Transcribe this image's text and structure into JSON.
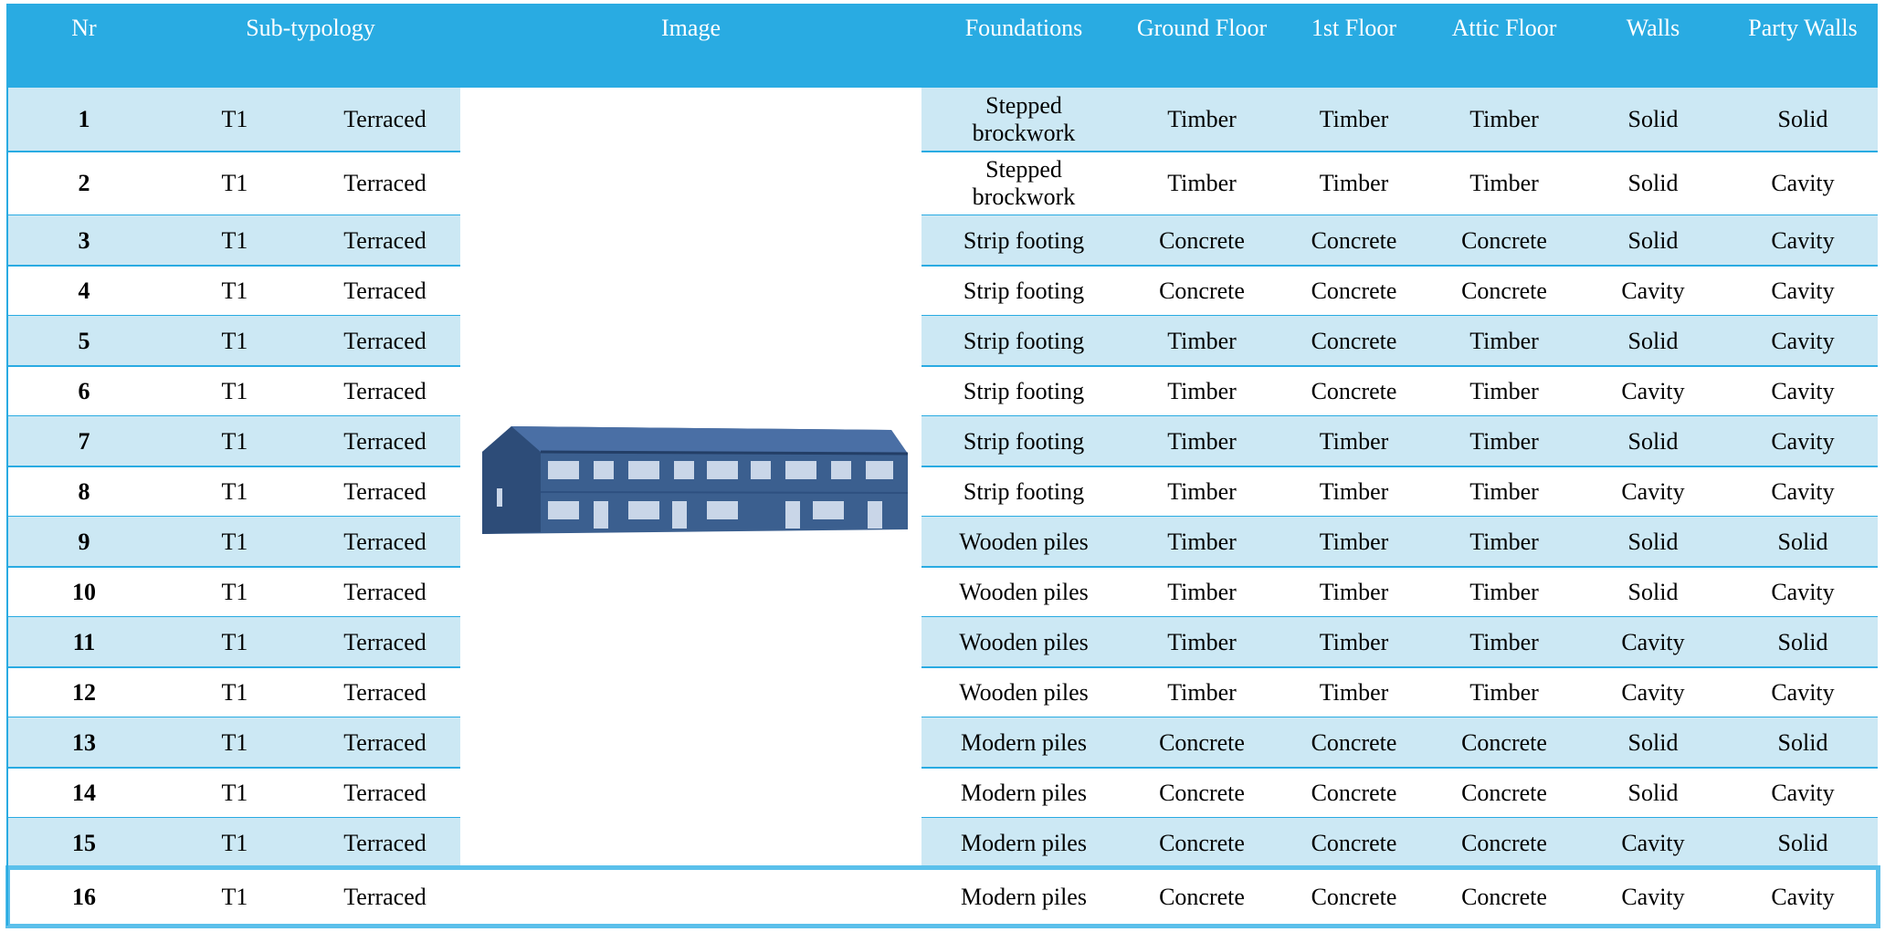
{
  "header": {
    "columns": [
      "Nr",
      "Sub-typology",
      "Image",
      "Foundations",
      "Ground Floor",
      "1st Floor",
      "Attic Floor",
      "Walls",
      "Party Walls"
    ]
  },
  "table": {
    "rows": [
      [
        1,
        "T1",
        "Terraced",
        "Stepped brockwork",
        "Timber",
        "Timber",
        "Timber",
        "Solid",
        "Solid"
      ],
      [
        2,
        "T1",
        "Terraced",
        "Stepped brockwork",
        "Timber",
        "Timber",
        "Timber",
        "Solid",
        "Cavity"
      ],
      [
        3,
        "T1",
        "Terraced",
        "Strip footing",
        "Concrete",
        "Concrete",
        "Concrete",
        "Solid",
        "Cavity"
      ],
      [
        4,
        "T1",
        "Terraced",
        "Strip footing",
        "Concrete",
        "Concrete",
        "Concrete",
        "Cavity",
        "Cavity"
      ],
      [
        5,
        "T1",
        "Terraced",
        "Strip footing",
        "Timber",
        "Concrete",
        "Timber",
        "Solid",
        "Cavity"
      ],
      [
        6,
        "T1",
        "Terraced",
        "Strip footing",
        "Timber",
        "Concrete",
        "Timber",
        "Cavity",
        "Cavity"
      ],
      [
        7,
        "T1",
        "Terraced",
        "Strip footing",
        "Timber",
        "Timber",
        "Timber",
        "Solid",
        "Cavity"
      ],
      [
        8,
        "T1",
        "Terraced",
        "Strip footing",
        "Timber",
        "Timber",
        "Timber",
        "Cavity",
        "Cavity"
      ],
      [
        9,
        "T1",
        "Terraced",
        "Wooden piles",
        "Timber",
        "Timber",
        "Timber",
        "Solid",
        "Solid"
      ],
      [
        10,
        "T1",
        "Terraced",
        "Wooden piles",
        "Timber",
        "Timber",
        "Timber",
        "Solid",
        "Cavity"
      ],
      [
        11,
        "T1",
        "Terraced",
        "Wooden piles",
        "Timber",
        "Timber",
        "Timber",
        "Cavity",
        "Solid"
      ],
      [
        12,
        "T1",
        "Terraced",
        "Wooden piles",
        "Timber",
        "Timber",
        "Timber",
        "Cavity",
        "Cavity"
      ],
      [
        13,
        "T1",
        "Terraced",
        "Modern piles",
        "Concrete",
        "Concrete",
        "Concrete",
        "Solid",
        "Solid"
      ],
      [
        14,
        "T1",
        "Terraced",
        "Modern piles",
        "Concrete",
        "Concrete",
        "Concrete",
        "Solid",
        "Cavity"
      ],
      [
        15,
        "T1",
        "Terraced",
        "Modern piles",
        "Concrete",
        "Concrete",
        "Concrete",
        "Cavity",
        "Solid"
      ],
      [
        16,
        "T1",
        "Terraced",
        "Modern piles",
        "Concrete",
        "Concrete",
        "Concrete",
        "Cavity",
        "Cavity"
      ]
    ]
  }
}
